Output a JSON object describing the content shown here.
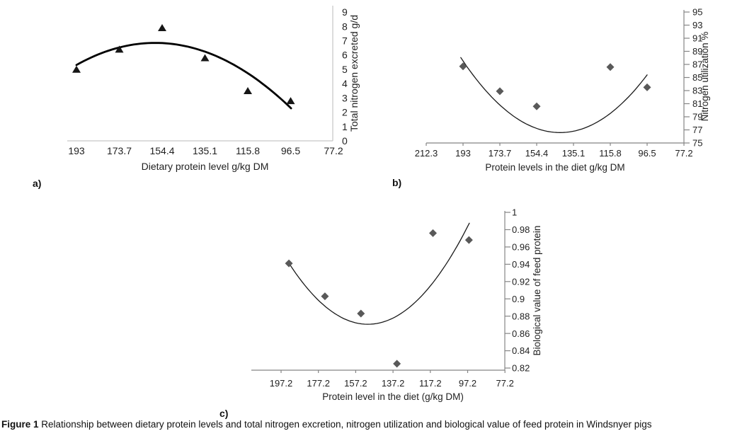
{
  "caption": {
    "bold": "Figure 1",
    "rest": " Relationship between dietary protein levels and total nitrogen excretion, nitrogen utilization and biological value of feed protein in Windsnyer pigs"
  },
  "text_color": "#1f1f1f",
  "chart_data": [
    {
      "id": "a",
      "type": "scatter",
      "panel_label": "a)",
      "xlabel": "Dietary protein level g/kg DM",
      "ylabel": "Total nitrogen excreted g/d",
      "x_tick_labels": [
        "193",
        "173.7",
        "154.4",
        "135.1",
        "115.8",
        "96.5",
        "77.2"
      ],
      "x_tick_values": [
        193,
        173.7,
        154.4,
        135.1,
        115.8,
        96.5,
        77.2
      ],
      "x_axis_descending": true,
      "y_tick_labels": [
        "0",
        "1",
        "2",
        "3",
        "4",
        "5",
        "6",
        "7",
        "8",
        "9"
      ],
      "y_tick_values": [
        0,
        1,
        2,
        3,
        4,
        5,
        6,
        7,
        8,
        9
      ],
      "y_range": [
        0,
        9
      ],
      "grid": false,
      "legend": false,
      "marker": "triangle",
      "marker_color": "#161616",
      "trend_color": "#000000",
      "trend_width": 2.8,
      "axis_color": "#c6c6c6",
      "axis_ticks": false,
      "points": {
        "x": [
          193,
          173.7,
          154.4,
          135.1,
          115.8,
          96.5
        ],
        "y": [
          5.0,
          6.4,
          7.9,
          5.8,
          3.5,
          2.8
        ]
      },
      "trend": {
        "quad_a": -0.0012215,
        "quad_b": 0.38471,
        "quad_c": -23.446,
        "x_from": 193,
        "x_to": 96.3
      }
    },
    {
      "id": "b",
      "type": "scatter",
      "panel_label": "b)",
      "xlabel": "Protein levels in the diet g/kg DM",
      "ylabel": "Nitrogen utilization %",
      "x_tick_labels": [
        "212.3",
        "193",
        "173.7",
        "154.4",
        "135.1",
        "115.8",
        "96.5",
        "77.2"
      ],
      "x_tick_values": [
        212.3,
        193,
        173.7,
        154.4,
        135.1,
        115.8,
        96.5,
        77.2
      ],
      "x_axis_descending": true,
      "y_tick_labels": [
        "75",
        "77",
        "79",
        "81",
        "83",
        "85",
        "87",
        "89",
        "91",
        "93",
        "95"
      ],
      "y_tick_values": [
        75,
        77,
        79,
        81,
        83,
        85,
        87,
        89,
        91,
        93,
        95
      ],
      "y_range": [
        75,
        95
      ],
      "grid": false,
      "legend": false,
      "marker": "diamond",
      "marker_color": "#595959",
      "trend_color": "#1a1a1a",
      "trend_width": 1.3,
      "axis_color": "#858585",
      "axis_ticks": true,
      "points": {
        "x": [
          193,
          173.7,
          154.4,
          115.8,
          96.5
        ],
        "y": [
          86.7,
          82.9,
          80.6,
          86.6,
          83.5
        ]
      },
      "trend": {
        "quad_a": 0.0042289,
        "quad_b": -1.20228,
        "quad_c": 162.039,
        "x_from": 194.2,
        "x_to": 96.5
      }
    },
    {
      "id": "c",
      "type": "scatter",
      "panel_label": "c)",
      "xlabel": "Protein level in the diet (g/kg DM)",
      "ylabel": "Biological value of feed protein",
      "x_tick_labels": [
        "197.2",
        "177.2",
        "157.2",
        "137.2",
        "117.2",
        "97.2",
        "77.2"
      ],
      "x_tick_values": [
        197.2,
        177.2,
        157.2,
        137.2,
        117.2,
        97.2,
        77.2
      ],
      "x_axis_descending": true,
      "y_tick_labels": [
        "0.82",
        "0.84",
        "0.86",
        "0.88",
        "0.9",
        "0.92",
        "0.94",
        "0.96",
        "0.98",
        "1"
      ],
      "y_tick_values": [
        0.82,
        0.84,
        0.86,
        0.88,
        0.9,
        0.92,
        0.94,
        0.96,
        0.98,
        1
      ],
      "y_range": [
        0.82,
        1
      ],
      "grid": false,
      "legend": false,
      "marker": "diamond",
      "marker_color": "#595959",
      "trend_color": "#1a1a1a",
      "trend_width": 1.3,
      "axis_ticks": true,
      "axis_color": "#858585",
      "points": {
        "x": [
          193,
          173.7,
          154.4,
          135.1,
          115.8,
          96.5
        ],
        "y": [
          0.941,
          0.903,
          0.883,
          0.825,
          0.976,
          0.968
        ]
      },
      "trend": {
        "quad_a": 3.951e-05,
        "quad_b": -0.0119076,
        "quad_c": 1.7678,
        "x_from": 192.5,
        "x_to": 96.3
      }
    }
  ]
}
